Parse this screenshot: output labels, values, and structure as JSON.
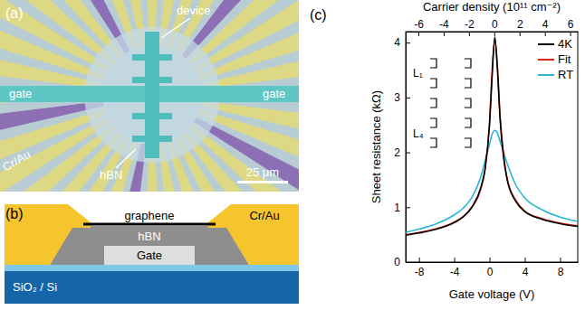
{
  "panel_a": {
    "label": "(a)",
    "annotations": [
      "device",
      "gate",
      "gate",
      "Cr/Au",
      "hBN"
    ],
    "scale_bar": "25 μm"
  },
  "panel_b": {
    "label": "(b)",
    "layers": [
      "graphene",
      "Cr/Au",
      "hBN",
      "Gate",
      "SiO₂ / Si"
    ]
  },
  "chart_data": {
    "type": "line",
    "panel_label": "(c)",
    "x_label": "Gate voltage (V)",
    "y_label": "Sheet resistance (kΩ)",
    "x2_label": "Carrier density (10¹¹ cm⁻²)",
    "x": [
      -9.5,
      -8,
      -6,
      -4,
      -3,
      -2,
      -1,
      -0.5,
      0,
      0.3,
      0.6,
      0.9,
      1.2,
      1.6,
      2,
      3,
      4,
      6,
      8,
      10
    ],
    "series": [
      {
        "name": "4K",
        "color": "#000000",
        "values": [
          0.49,
          0.53,
          0.6,
          0.72,
          0.82,
          1.0,
          1.35,
          1.7,
          2.5,
          3.4,
          4.1,
          3.5,
          2.6,
          1.9,
          1.5,
          1.1,
          0.92,
          0.78,
          0.7,
          0.65
        ]
      },
      {
        "name": "Fit",
        "color": "#e3231b",
        "values": [
          0.5,
          0.54,
          0.61,
          0.73,
          0.83,
          1.0,
          1.33,
          1.7,
          2.55,
          3.5,
          4.05,
          3.55,
          2.65,
          1.95,
          1.52,
          1.12,
          0.93,
          0.79,
          0.71,
          0.66
        ]
      },
      {
        "name": "RT",
        "color": "#2bb5d8",
        "values": [
          0.54,
          0.6,
          0.7,
          0.86,
          0.98,
          1.18,
          1.55,
          1.85,
          2.15,
          2.33,
          2.4,
          2.35,
          2.2,
          2.0,
          1.8,
          1.4,
          1.17,
          0.95,
          0.82,
          0.74
        ]
      }
    ],
    "xlim": [
      -9.5,
      10
    ],
    "xticks": [
      -8,
      -4,
      0,
      4,
      8
    ],
    "x2lim": [
      -7.0,
      6.6
    ],
    "x2ticks": [
      -6,
      -4,
      -2,
      0,
      2,
      4,
      6
    ],
    "ylim": [
      0,
      4.2
    ],
    "yticks": [
      0,
      1,
      2,
      3,
      4
    ],
    "legend": "upper right",
    "inset_labels": [
      "L₁",
      "L₄"
    ]
  }
}
